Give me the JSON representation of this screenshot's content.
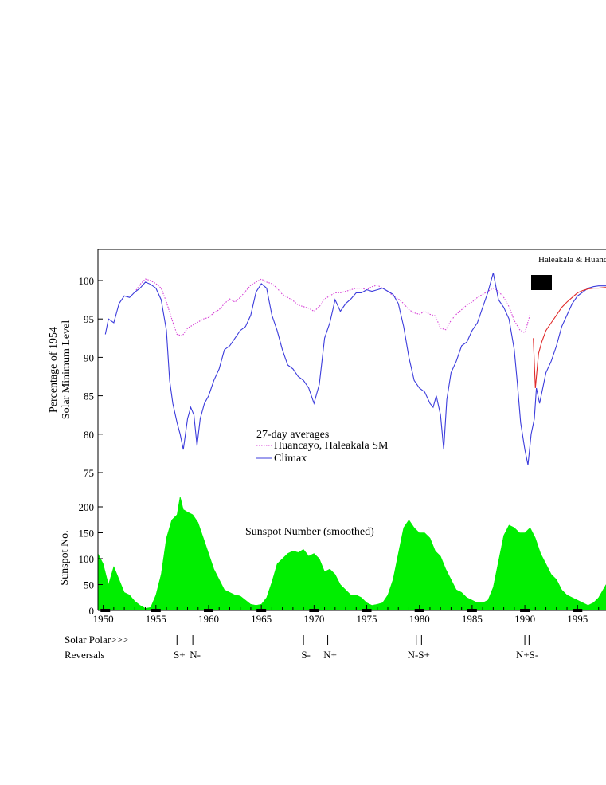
{
  "chart_data": [
    {
      "type": "line",
      "title": "",
      "ylabel_lines": [
        "Percentage of 1954",
        "Solar Minimum Level"
      ],
      "ylim": [
        72,
        104
      ],
      "yticks": [
        75,
        80,
        85,
        90,
        95,
        100
      ],
      "xlim": [
        1949.5,
        1997.7
      ],
      "legend": {
        "heading": "27-day averages",
        "placement": "center",
        "entries": [
          "Huancayo, Haleakala SM",
          "Climax"
        ]
      },
      "corner_label": "Haleakala & Huanc",
      "series": [
        {
          "name": "Huancayo, Haleakala SM",
          "color": "#d63fd6",
          "style": "dotted",
          "x": [
            1953.0,
            1953.5,
            1954.0,
            1954.5,
            1955.0,
            1955.5,
            1956.0,
            1956.5,
            1957.0,
            1957.5,
            1958.0,
            1958.5,
            1959.0,
            1959.5,
            1960.0,
            1960.5,
            1961.0,
            1961.5,
            1962.0,
            1962.5,
            1963.0,
            1963.5,
            1964.0,
            1964.5,
            1965.0,
            1965.5,
            1966.0,
            1966.5,
            1967.0,
            1967.5,
            1968.0,
            1968.5,
            1969.0,
            1969.5,
            1970.0,
            1970.5,
            1971.0,
            1971.5,
            1972.0,
            1972.5,
            1973.0,
            1973.5,
            1974.0,
            1974.5,
            1975.0,
            1975.5,
            1976.0,
            1976.5,
            1977.0,
            1977.5,
            1978.0,
            1978.5,
            1979.0,
            1979.5,
            1980.0,
            1980.5,
            1981.0,
            1981.5,
            1982.0,
            1982.5,
            1983.0,
            1983.5,
            1984.0,
            1984.5,
            1985.0,
            1985.5,
            1986.0,
            1986.5,
            1987.0,
            1987.5,
            1988.0,
            1988.5,
            1989.0,
            1989.5,
            1990.0,
            1990.5
          ],
          "y": [
            98.5,
            99.5,
            100.2,
            100.0,
            99.6,
            99.0,
            97.2,
            95.0,
            93.0,
            92.8,
            93.8,
            94.2,
            94.6,
            95.0,
            95.2,
            95.8,
            96.2,
            97.0,
            97.6,
            97.2,
            97.8,
            98.6,
            99.4,
            99.8,
            100.2,
            99.8,
            99.6,
            99.0,
            98.2,
            97.8,
            97.4,
            96.8,
            96.6,
            96.4,
            96.0,
            96.6,
            97.6,
            98.0,
            98.4,
            98.4,
            98.6,
            98.8,
            99.0,
            99.0,
            98.8,
            99.2,
            99.4,
            99.0,
            98.6,
            98.0,
            97.6,
            97.0,
            96.2,
            95.8,
            95.6,
            96.0,
            95.6,
            95.4,
            93.8,
            93.6,
            94.8,
            95.6,
            96.2,
            96.8,
            97.2,
            97.8,
            98.2,
            98.6,
            99.0,
            98.6,
            97.8,
            96.6,
            94.8,
            93.6,
            93.2,
            95.6
          ]
        },
        {
          "name": "Climax",
          "color": "#3c3cdc",
          "style": "solid",
          "x": [
            1950.2,
            1950.5,
            1951.0,
            1951.5,
            1952.0,
            1952.5,
            1953.0,
            1953.5,
            1954.0,
            1954.5,
            1955.0,
            1955.5,
            1956.0,
            1956.3,
            1956.6,
            1957.0,
            1957.3,
            1957.6,
            1958.0,
            1958.3,
            1958.6,
            1958.9,
            1959.2,
            1959.6,
            1960.0,
            1960.5,
            1961.0,
            1961.5,
            1962.0,
            1962.5,
            1963.0,
            1963.5,
            1964.0,
            1964.5,
            1965.0,
            1965.5,
            1966.0,
            1966.5,
            1967.0,
            1967.5,
            1968.0,
            1968.5,
            1969.0,
            1969.5,
            1970.0,
            1970.5,
            1971.0,
            1971.5,
            1972.0,
            1972.5,
            1973.0,
            1973.5,
            1974.0,
            1974.5,
            1975.0,
            1975.5,
            1976.0,
            1976.5,
            1977.0,
            1977.5,
            1978.0,
            1978.5,
            1979.0,
            1979.5,
            1980.0,
            1980.5,
            1981.0,
            1981.3,
            1981.6,
            1982.0,
            1982.3,
            1982.6,
            1983.0,
            1983.5,
            1984.0,
            1984.5,
            1985.0,
            1985.5,
            1986.0,
            1986.5,
            1987.0,
            1987.5,
            1988.0,
            1988.5,
            1989.0,
            1989.3,
            1989.6,
            1990.0,
            1990.3,
            1990.6,
            1990.9,
            1991.1,
            1991.4,
            1991.7,
            1992.0,
            1992.5,
            1993.0,
            1993.5,
            1994.0,
            1994.5,
            1995.0,
            1995.5,
            1996.0,
            1996.5,
            1997.0,
            1997.7
          ],
          "y": [
            93.0,
            95.0,
            94.5,
            97.0,
            98.0,
            97.8,
            98.5,
            99.0,
            99.8,
            99.5,
            99.0,
            97.5,
            93.5,
            87.0,
            84.0,
            81.5,
            80.0,
            78.0,
            82.0,
            83.5,
            82.5,
            78.5,
            82.0,
            84.0,
            85.0,
            87.0,
            88.5,
            91.0,
            91.5,
            92.5,
            93.5,
            94.0,
            95.5,
            98.5,
            99.6,
            99.0,
            95.5,
            93.5,
            91.0,
            89.0,
            88.5,
            87.5,
            87.0,
            86.0,
            84.0,
            86.5,
            92.5,
            94.5,
            97.5,
            96.0,
            97.0,
            97.6,
            98.4,
            98.4,
            98.8,
            98.6,
            98.8,
            99.0,
            98.6,
            98.2,
            97.0,
            94.0,
            90.0,
            87.0,
            86.0,
            85.5,
            84.0,
            83.5,
            85.0,
            82.5,
            78.0,
            84.5,
            88.0,
            89.5,
            91.5,
            92.0,
            93.5,
            94.5,
            96.5,
            98.5,
            101.0,
            97.5,
            96.5,
            95.0,
            91.0,
            86.5,
            81.5,
            78.0,
            76.0,
            80.0,
            82.0,
            86.0,
            84.0,
            86.0,
            88.0,
            89.5,
            91.5,
            94.0,
            95.5,
            97.0,
            98.0,
            98.5,
            99.0,
            99.2,
            99.3,
            99.3
          ]
        },
        {
          "name": "Haleakala & Huanc",
          "color": "#e02a2a",
          "style": "solid",
          "x": [
            1990.8,
            1991.0,
            1991.3,
            1991.6,
            1992.0,
            1992.5,
            1993.0,
            1993.5,
            1994.0,
            1994.5,
            1995.0,
            1995.5,
            1996.0,
            1996.5,
            1997.0,
            1997.7
          ],
          "y": [
            92.5,
            86.0,
            90.5,
            92.0,
            93.5,
            94.5,
            95.5,
            96.5,
            97.2,
            97.8,
            98.4,
            98.7,
            98.9,
            99.0,
            99.0,
            99.1
          ]
        }
      ]
    },
    {
      "type": "area",
      "title": "Sunspot Number (smoothed)",
      "ylabel": "Sunspot No.",
      "ylim": [
        0,
        205
      ],
      "yticks": [
        0,
        50,
        100,
        150,
        200
      ],
      "xlim": [
        1949.5,
        1997.7
      ],
      "xticks": [
        1950,
        1955,
        1960,
        1965,
        1970,
        1975,
        1980,
        1985,
        1990,
        1995
      ],
      "color": "#00ee00",
      "x": [
        1949.5,
        1950.0,
        1950.5,
        1951.0,
        1951.5,
        1952.0,
        1952.5,
        1953.0,
        1953.5,
        1954.0,
        1954.5,
        1955.0,
        1955.5,
        1956.0,
        1956.5,
        1957.0,
        1957.3,
        1957.6,
        1958.0,
        1958.5,
        1959.0,
        1959.5,
        1960.0,
        1960.5,
        1961.0,
        1961.5,
        1962.0,
        1962.5,
        1963.0,
        1963.5,
        1964.0,
        1964.5,
        1965.0,
        1965.5,
        1966.0,
        1966.5,
        1967.0,
        1967.5,
        1968.0,
        1968.5,
        1969.0,
        1969.5,
        1970.0,
        1970.5,
        1971.0,
        1971.5,
        1972.0,
        1972.5,
        1973.0,
        1973.5,
        1974.0,
        1974.5,
        1975.0,
        1975.5,
        1976.0,
        1976.5,
        1977.0,
        1977.5,
        1978.0,
        1978.5,
        1979.0,
        1979.5,
        1980.0,
        1980.5,
        1981.0,
        1981.5,
        1982.0,
        1982.5,
        1983.0,
        1983.5,
        1984.0,
        1984.5,
        1985.0,
        1985.5,
        1986.0,
        1986.5,
        1987.0,
        1987.5,
        1988.0,
        1988.5,
        1989.0,
        1989.5,
        1990.0,
        1990.5,
        1991.0,
        1991.5,
        1992.0,
        1992.5,
        1993.0,
        1993.5,
        1994.0,
        1994.5,
        1995.0,
        1995.5,
        1996.0,
        1996.5,
        1997.0,
        1997.7
      ],
      "y": [
        110,
        90,
        50,
        85,
        60,
        35,
        30,
        18,
        10,
        4,
        6,
        30,
        70,
        140,
        175,
        185,
        220,
        195,
        190,
        185,
        170,
        140,
        110,
        80,
        60,
        40,
        35,
        30,
        28,
        20,
        12,
        10,
        12,
        25,
        55,
        90,
        100,
        110,
        115,
        112,
        118,
        105,
        110,
        100,
        75,
        80,
        70,
        50,
        40,
        30,
        30,
        25,
        15,
        10,
        12,
        15,
        30,
        60,
        110,
        160,
        175,
        160,
        150,
        150,
        140,
        115,
        105,
        80,
        60,
        40,
        35,
        25,
        20,
        15,
        15,
        20,
        45,
        95,
        145,
        165,
        160,
        150,
        150,
        160,
        140,
        110,
        90,
        70,
        60,
        40,
        30,
        25,
        20,
        15,
        10,
        15,
        25,
        50
      ]
    }
  ],
  "polar_reversals": {
    "heading": "Solar Polar>>>",
    "subheading": "Reversals",
    "marks": [
      {
        "year": 1957.0,
        "label": "S+"
      },
      {
        "year": 1958.5,
        "label": "N-"
      },
      {
        "year": 1969.0,
        "label": "S-"
      },
      {
        "year": 1971.3,
        "label": "N+"
      },
      {
        "year": 1979.7,
        "label": "N-S+"
      },
      {
        "year": 1980.2,
        "label": ""
      },
      {
        "year": 1990.0,
        "label": "N+S-"
      },
      {
        "year": 1990.4,
        "label": ""
      }
    ]
  },
  "solar_minimum_bars": [
    1950.2,
    1955.0,
    1960.0,
    1965.0,
    1970.0,
    1975.0,
    1980.0,
    1985.0,
    1990.0,
    1995.0
  ]
}
